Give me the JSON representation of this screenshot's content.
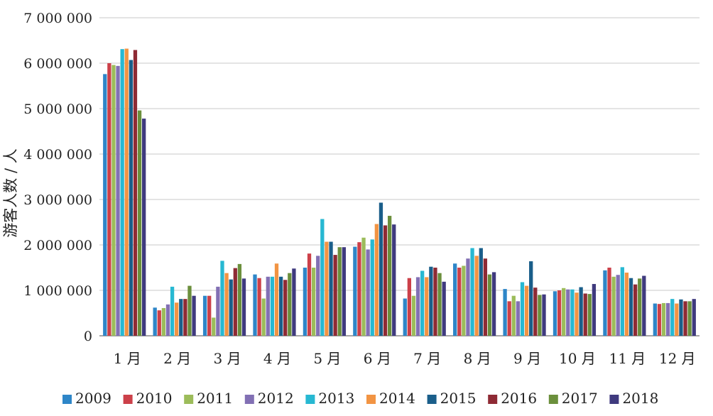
{
  "chart_data": {
    "type": "bar",
    "title": "",
    "xlabel": "",
    "ylabel": "游客人数 / 人",
    "ylim": [
      0,
      7000000
    ],
    "yticks": [
      0,
      1000000,
      2000000,
      3000000,
      4000000,
      5000000,
      6000000,
      7000000
    ],
    "ytick_labels": [
      "0",
      "1 000 000",
      "2 000 000",
      "3 000 000",
      "4 000 000",
      "5 000 000",
      "6 000 000",
      "7 000 000"
    ],
    "grid": true,
    "legend_position": "bottom",
    "categories": [
      "1 月",
      "2 月",
      "3 月",
      "4 月",
      "5 月",
      "6 月",
      "7 月",
      "8 月",
      "9 月",
      "10 月",
      "11 月",
      "12 月"
    ],
    "series": [
      {
        "name": "2009",
        "color": "#2e86c8",
        "values": [
          5760000,
          620000,
          880000,
          1350000,
          1500000,
          1960000,
          820000,
          1590000,
          1030000,
          980000,
          1440000,
          710000
        ]
      },
      {
        "name": "2010",
        "color": "#cc4049",
        "values": [
          6000000,
          560000,
          880000,
          1270000,
          1810000,
          2060000,
          1270000,
          1500000,
          760000,
          1000000,
          1500000,
          700000
        ]
      },
      {
        "name": "2011",
        "color": "#9cbc5a",
        "values": [
          5960000,
          610000,
          400000,
          820000,
          1500000,
          2160000,
          880000,
          1540000,
          880000,
          1050000,
          1300000,
          720000
        ]
      },
      {
        "name": "2012",
        "color": "#8270b4",
        "values": [
          5940000,
          690000,
          1080000,
          1300000,
          1760000,
          1900000,
          1290000,
          1700000,
          760000,
          1020000,
          1340000,
          720000
        ]
      },
      {
        "name": "2013",
        "color": "#27b8d2",
        "values": [
          6310000,
          1080000,
          1650000,
          1300000,
          2570000,
          2120000,
          1430000,
          1930000,
          1180000,
          1020000,
          1510000,
          810000
        ]
      },
      {
        "name": "2014",
        "color": "#f29443",
        "values": [
          6320000,
          730000,
          1380000,
          1590000,
          2070000,
          2460000,
          1290000,
          1760000,
          1100000,
          950000,
          1390000,
          710000
        ]
      },
      {
        "name": "2015",
        "color": "#1a5e8a",
        "values": [
          6070000,
          810000,
          1240000,
          1300000,
          2070000,
          2930000,
          1520000,
          1930000,
          1640000,
          1070000,
          1270000,
          800000
        ]
      },
      {
        "name": "2016",
        "color": "#8e2a34",
        "values": [
          6290000,
          810000,
          1490000,
          1230000,
          1780000,
          2430000,
          1500000,
          1700000,
          1060000,
          930000,
          1130000,
          760000
        ]
      },
      {
        "name": "2017",
        "color": "#6b8f3c",
        "values": [
          4960000,
          1100000,
          1580000,
          1380000,
          1950000,
          2640000,
          1380000,
          1350000,
          900000,
          920000,
          1260000,
          760000
        ]
      },
      {
        "name": "2018",
        "color": "#3f3a7e",
        "values": [
          4780000,
          880000,
          1260000,
          1480000,
          1950000,
          2450000,
          1190000,
          1400000,
          910000,
          1140000,
          1320000,
          810000
        ]
      }
    ]
  }
}
